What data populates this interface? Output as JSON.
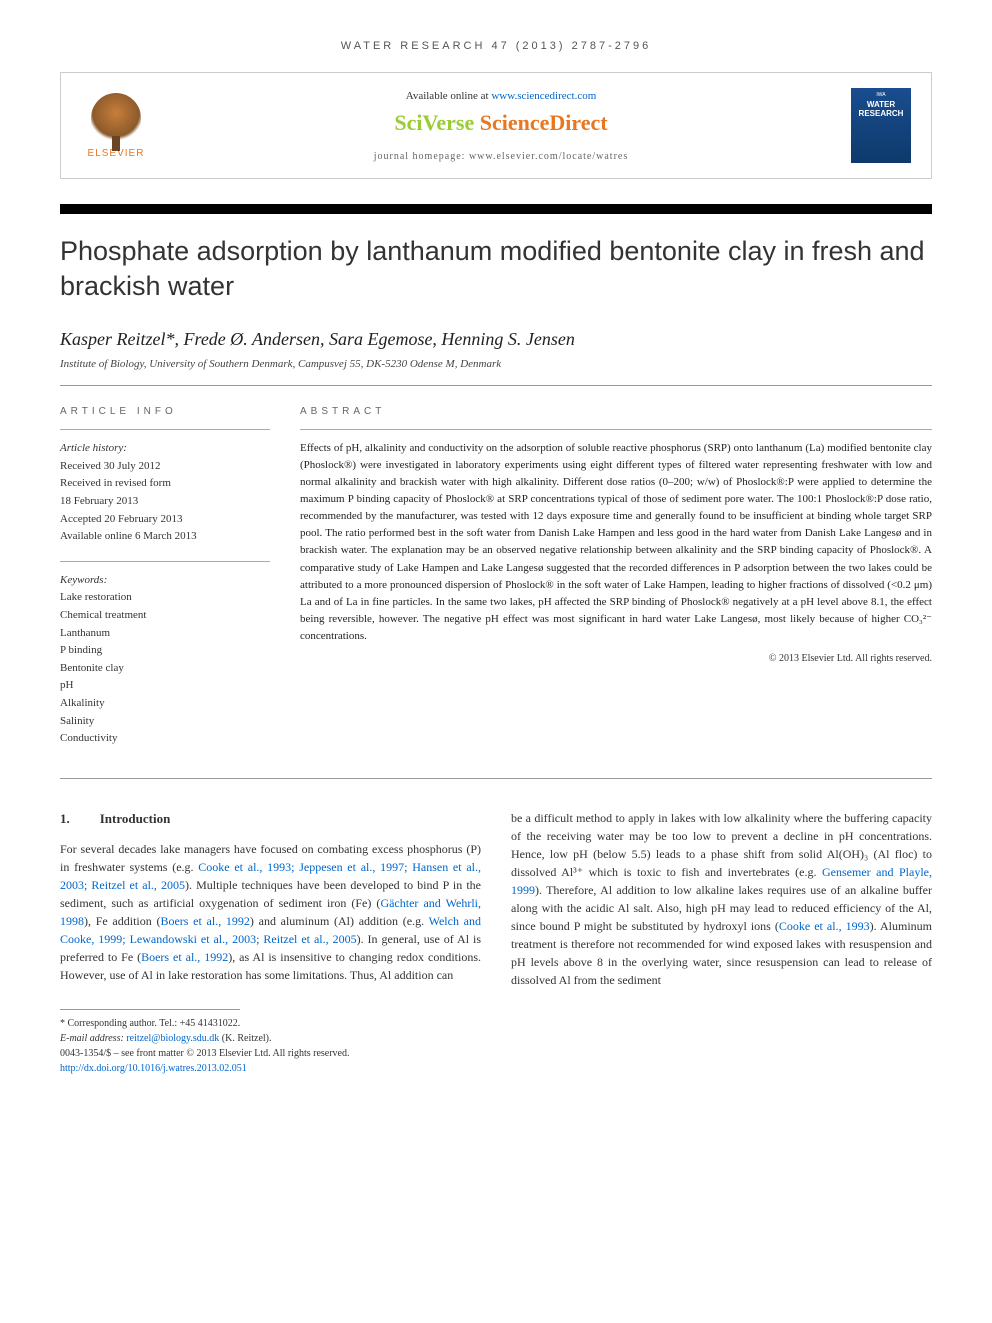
{
  "journal_ref": "WATER RESEARCH 47 (2013) 2787-2796",
  "top_box": {
    "elsevier": "ELSEVIER",
    "available_prefix": "Available online at ",
    "available_link": "www.sciencedirect.com",
    "sciverse_sci": "SciVerse ",
    "sciverse_direct": "ScienceDirect",
    "homepage_label": "journal homepage: ",
    "homepage_url": "www.elsevier.com/locate/watres",
    "cover_brand": "WATER RESEARCH"
  },
  "title": "Phosphate adsorption by lanthanum modified bentonite clay in fresh and brackish water",
  "authors": "Kasper Reitzel*, Frede Ø. Andersen, Sara Egemose, Henning S. Jensen",
  "affiliation": "Institute of Biology, University of Southern Denmark, Campusvej 55, DK-5230 Odense M, Denmark",
  "info": {
    "heading": "ARTICLE INFO",
    "history_label": "Article history:",
    "received": "Received 30 July 2012",
    "revised1": "Received in revised form",
    "revised2": "18 February 2013",
    "accepted": "Accepted 20 February 2013",
    "online": "Available online 6 March 2013",
    "keywords_label": "Keywords:",
    "keywords": [
      "Lake restoration",
      "Chemical treatment",
      "Lanthanum",
      "P binding",
      "Bentonite clay",
      "pH",
      "Alkalinity",
      "Salinity",
      "Conductivity"
    ]
  },
  "abstract": {
    "heading": "ABSTRACT",
    "text": "Effects of pH, alkalinity and conductivity on the adsorption of soluble reactive phosphorus (SRP) onto lanthanum (La) modified bentonite clay (Phoslock®) were investigated in laboratory experiments using eight different types of filtered water representing freshwater with low and normal alkalinity and brackish water with high alkalinity. Different dose ratios (0–200; w/w) of Phoslock®:P were applied to determine the maximum P binding capacity of Phoslock® at SRP concentrations typical of those of sediment pore water. The 100:1 Phoslock®:P dose ratio, recommended by the manufacturer, was tested with 12 days exposure time and generally found to be insufficient at binding whole target SRP pool. The ratio performed best in the soft water from Danish Lake Hampen and less good in the hard water from Danish Lake Langesø and in brackish water. The explanation may be an observed negative relationship between alkalinity and the SRP binding capacity of Phoslock®. A comparative study of Lake Hampen and Lake Langesø suggested that the recorded differences in P adsorption between the two lakes could be attributed to a more pronounced dispersion of Phoslock® in the soft water of Lake Hampen, leading to higher fractions of dissolved (<0.2 μm) La and of La in fine particles. In the same two lakes, pH affected the SRP binding of Phoslock® negatively at a pH level above 8.1, the effect being reversible, however. The negative pH effect was most significant in hard water Lake Langesø, most likely because of higher CO₃²⁻ concentrations.",
    "copyright": "© 2013 Elsevier Ltd. All rights reserved."
  },
  "intro": {
    "num": "1.",
    "heading": "Introduction",
    "col1_p1": "For several decades lake managers have focused on combating excess phosphorus (P) in freshwater systems (e.g. ",
    "col1_c1": "Cooke et al., 1993; Jeppesen et al., 1997; Hansen et al., 2003; Reitzel et al., 2005",
    "col1_p2": "). Multiple techniques have been developed to bind P in the sediment, such as artificial oxygenation of sediment iron (Fe) (",
    "col1_c2": "Gächter and Wehrli, 1998",
    "col1_p3": "), Fe addition (",
    "col1_c3": "Boers et al., 1992",
    "col1_p4": ") and aluminum (Al) addition (e.g. ",
    "col1_c4": "Welch and Cooke, 1999; Lewandowski et al., 2003; Reitzel et al., 2005",
    "col1_p5": "). In general, use of Al is preferred to Fe (",
    "col1_c5": "Boers et al., 1992",
    "col1_p6": "), as Al is insensitive to changing redox conditions. However, use of Al in lake restoration has some limitations. Thus, Al addition can",
    "col2_p1": "be a difficult method to apply in lakes with low alkalinity where the buffering capacity of the receiving water may be too low to prevent a decline in pH concentrations. Hence, low pH (below 5.5) leads to a phase shift from solid Al(OH)₃ (Al floc) to dissolved Al³⁺ which is toxic to fish and invertebrates (e.g. ",
    "col2_c1": "Gensemer and Playle, 1999",
    "col2_p2": "). Therefore, Al addition to low alkaline lakes requires use of an alkaline buffer along with the acidic Al salt. Also, high pH may lead to reduced efficiency of the Al, since bound P might be substituted by hydroxyl ions (",
    "col2_c2": "Cooke et al., 1993",
    "col2_p3": "). Aluminum treatment is therefore not recommended for wind exposed lakes with resuspension and pH levels above 8 in the overlying water, since resuspension can lead to release of dissolved Al from the sediment"
  },
  "footer": {
    "corresponding": "* Corresponding author. Tel.: +45 41431022.",
    "email_label": "E-mail address: ",
    "email": "reitzel@biology.sdu.dk",
    "email_suffix": " (K. Reitzel).",
    "issn": "0043-1354/$ – see front matter © 2013 Elsevier Ltd. All rights reserved.",
    "doi_url": "http://dx.doi.org/10.1016/j.watres.2013.02.051"
  }
}
